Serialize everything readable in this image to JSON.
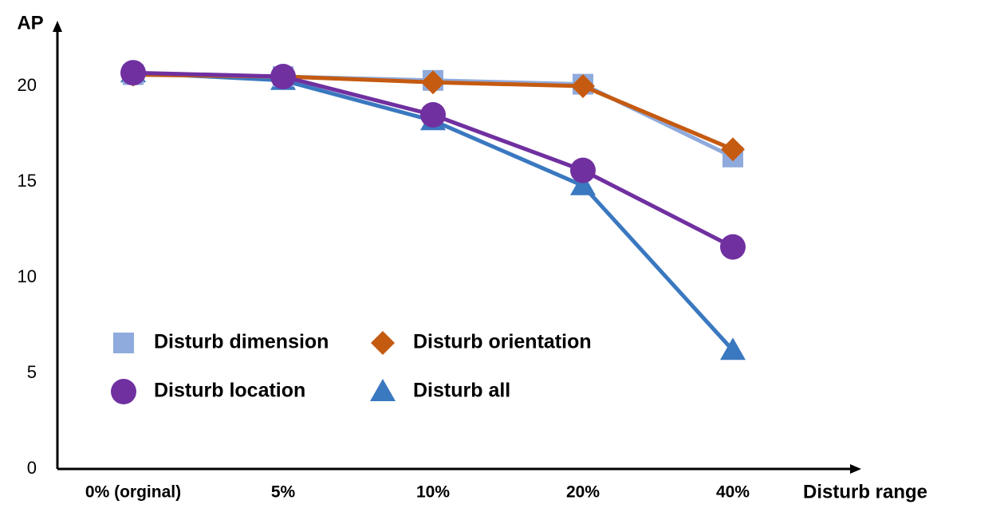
{
  "chart_data": {
    "type": "line",
    "y_label": "AP",
    "x_label": "Disturb range",
    "categories": [
      "0% (orginal)",
      "5%",
      "10%",
      "20%",
      "40%"
    ],
    "series": [
      {
        "name": "Disturb dimension",
        "color": "#8faadc",
        "marker": "square",
        "values": [
          20.6,
          20.5,
          20.3,
          20.1,
          16.3
        ]
      },
      {
        "name": "Disturb orientation",
        "color": "#c55a11",
        "marker": "diamond",
        "values": [
          20.6,
          20.5,
          20.2,
          20.0,
          16.7
        ]
      },
      {
        "name": "Disturb location",
        "color": "#7030a0",
        "marker": "circle",
        "values": [
          20.7,
          20.5,
          18.5,
          15.6,
          11.6
        ]
      },
      {
        "name": "Disturb all",
        "color": "#3a78c0",
        "marker": "triangle",
        "values": [
          20.7,
          20.3,
          18.2,
          14.8,
          6.2
        ]
      }
    ],
    "ylim": [
      0,
      23
    ],
    "yticks": [
      0,
      5,
      10,
      15,
      20
    ],
    "grid": false
  }
}
